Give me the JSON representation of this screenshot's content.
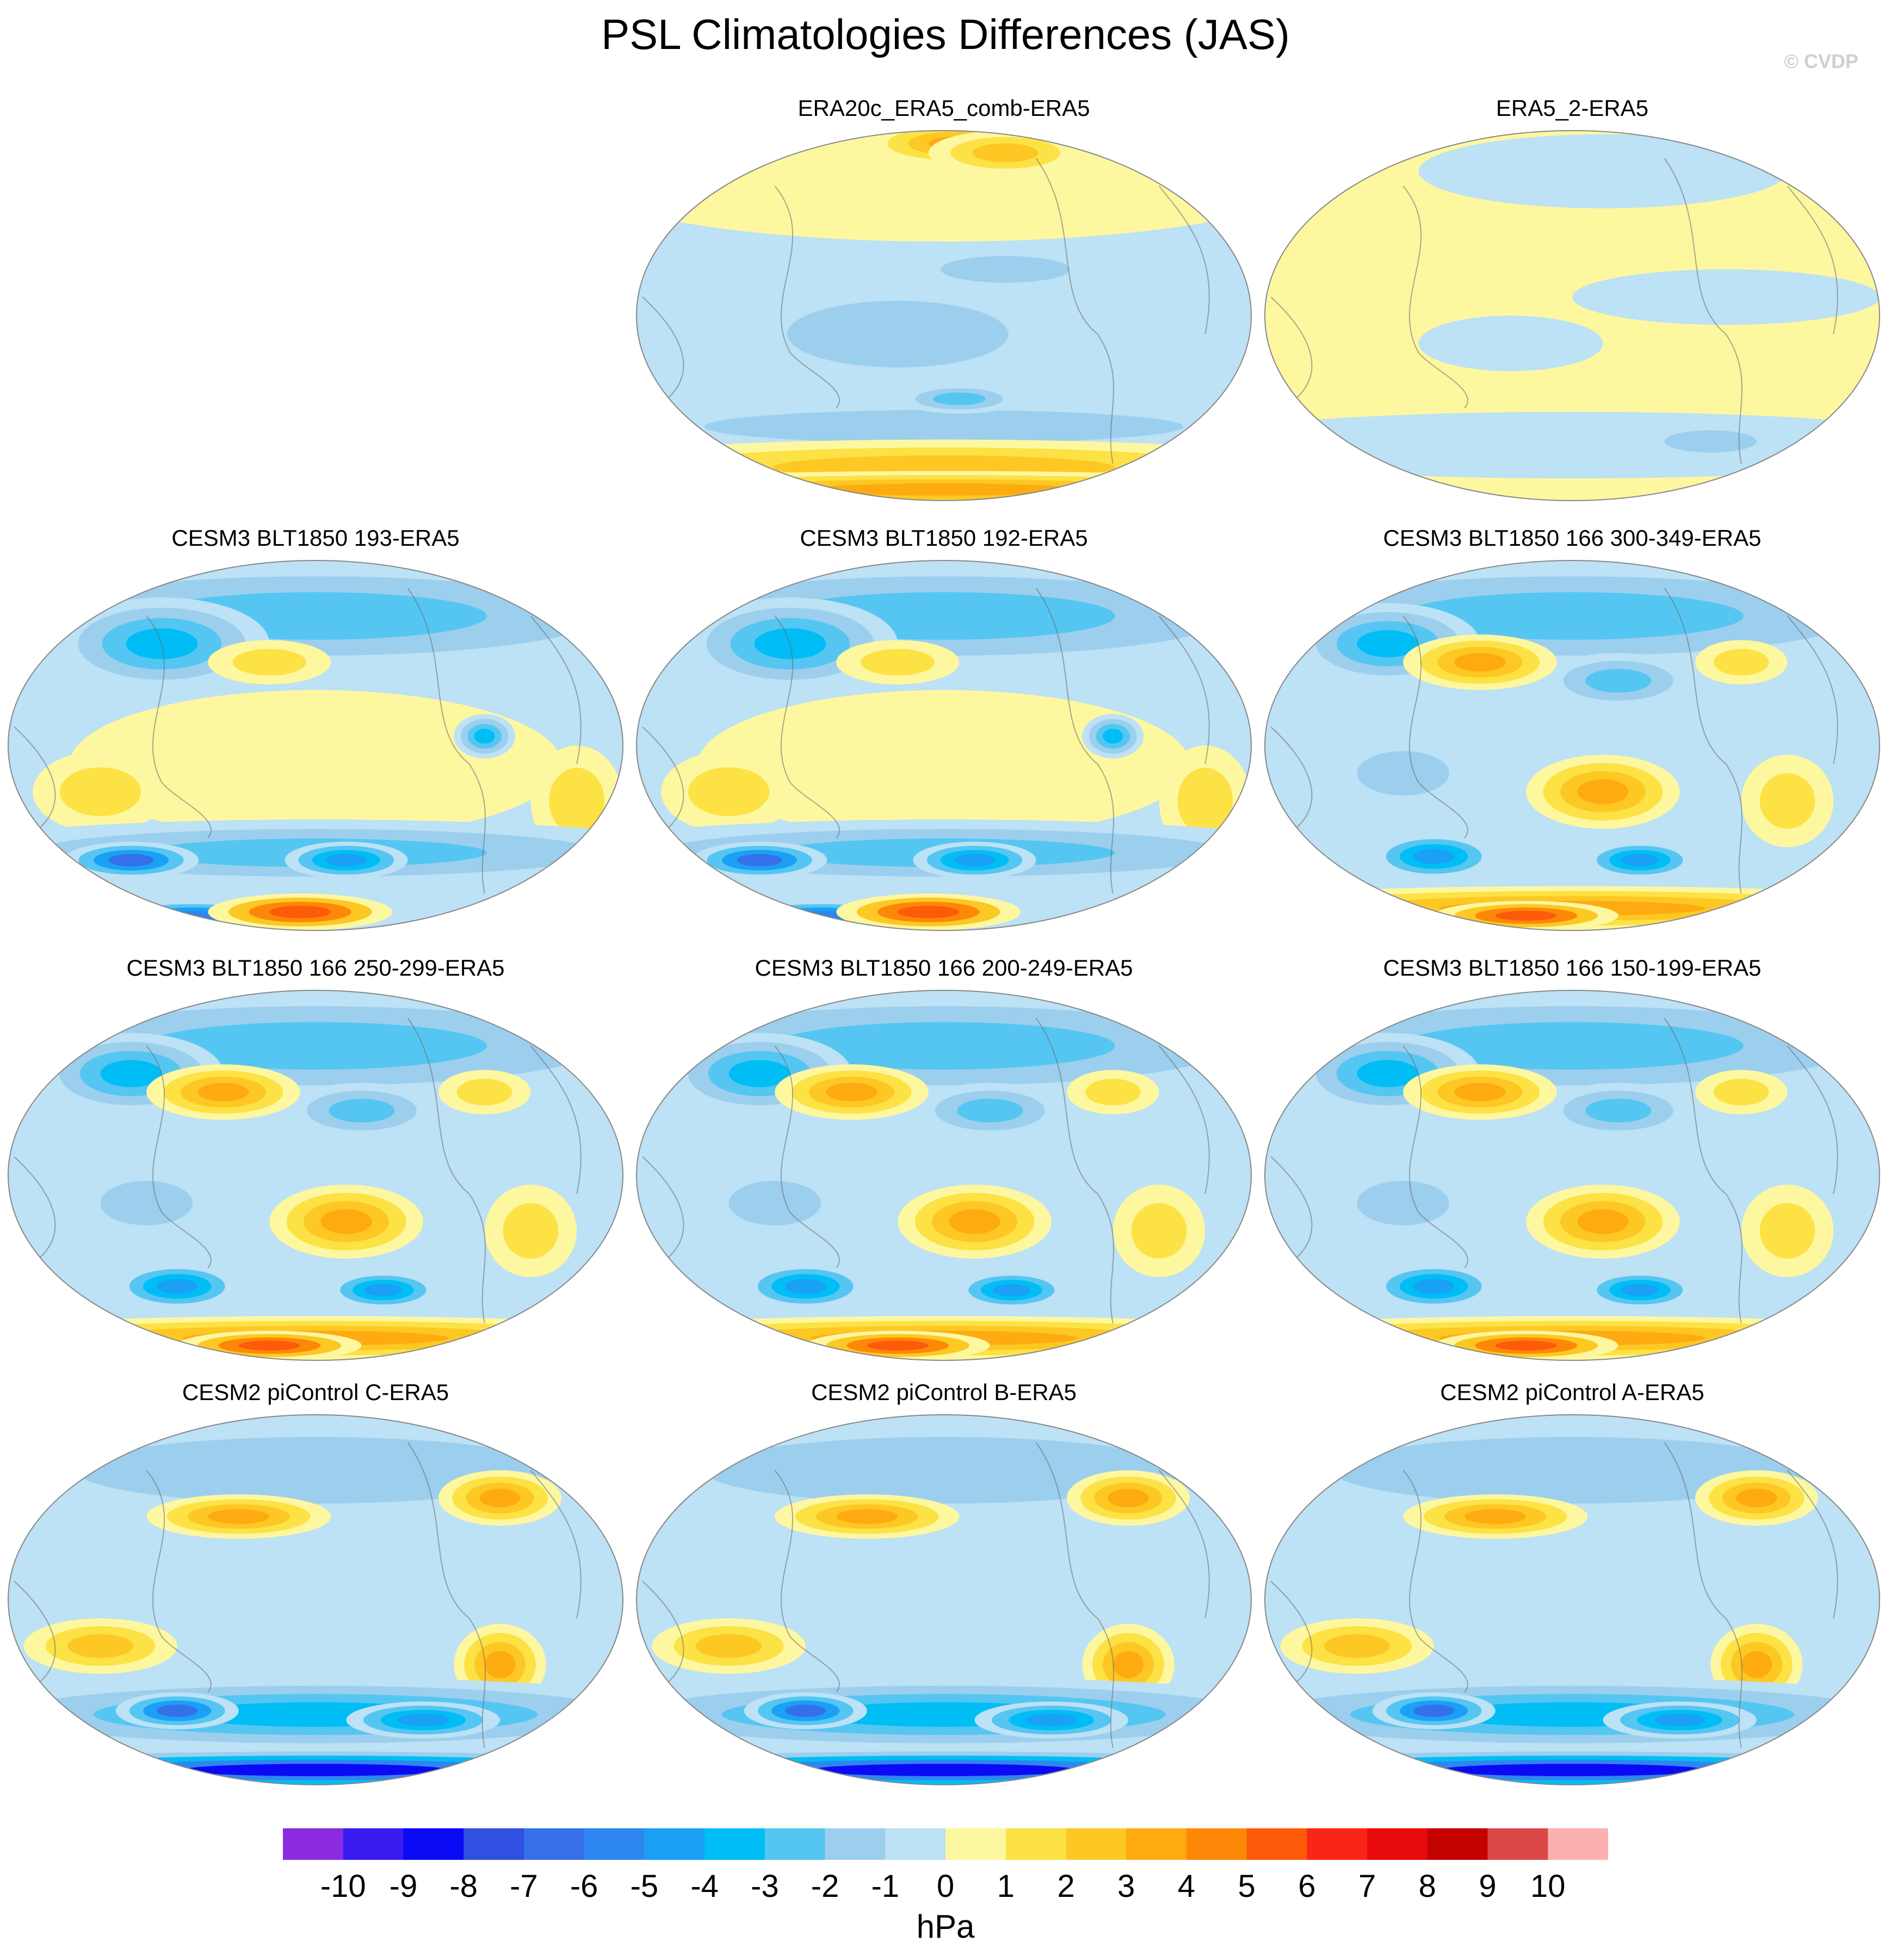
{
  "figure": {
    "title": "PSL Climatologies Differences (JAS)",
    "credit": "© CVDP",
    "units": "hPa"
  },
  "chart_data": {
    "type": "heatmap",
    "projection": "Robinson (global, 180° centered)",
    "panels": [
      {
        "id": "p1",
        "title": "ERA20c_ERA5_comb-ERA5",
        "pattern": "era20c"
      },
      {
        "id": "p2",
        "title": "ERA5_2-ERA5",
        "pattern": "era5_2"
      },
      {
        "id": "p3",
        "title": "CESM3 BLT1850 193-ERA5",
        "pattern": "cesm3a"
      },
      {
        "id": "p4",
        "title": "CESM3 BLT1850 192-ERA5",
        "pattern": "cesm3a"
      },
      {
        "id": "p5",
        "title": "CESM3 BLT1850 166 300-349-ERA5",
        "pattern": "cesm3b"
      },
      {
        "id": "p6",
        "title": "CESM3 BLT1850 166 250-299-ERA5",
        "pattern": "cesm3b"
      },
      {
        "id": "p7",
        "title": "CESM3 BLT1850 166 200-249-ERA5",
        "pattern": "cesm3b"
      },
      {
        "id": "p8",
        "title": "CESM3 BLT1850 166 150-199-ERA5",
        "pattern": "cesm3b"
      },
      {
        "id": "p9",
        "title": "CESM2 piControl C-ERA5",
        "pattern": "cesm2"
      },
      {
        "id": "p10",
        "title": "CESM2 piControl B-ERA5",
        "pattern": "cesm2"
      },
      {
        "id": "p11",
        "title": "CESM2 piControl A-ERA5",
        "pattern": "cesm2"
      }
    ],
    "colorbar": {
      "levels": [
        "-10",
        "-9",
        "-8",
        "-7",
        "-6",
        "-5",
        "-4",
        "-3",
        "-2",
        "-1",
        "0",
        "1",
        "2",
        "3",
        "4",
        "5",
        "6",
        "7",
        "8",
        "9",
        "10"
      ],
      "colors": [
        "#8a2be2",
        "#3a1cf0",
        "#0a0af5",
        "#2f50e0",
        "#3570e8",
        "#2e86f0",
        "#1aa0f5",
        "#00bdf5",
        "#55c6f2",
        "#9ccfed",
        "#bde1f5",
        "#fdf7a0",
        "#fde246",
        "#fdc824",
        "#fdab10",
        "#fd8808",
        "#fd5a0a",
        "#fb2418",
        "#e80a0a",
        "#c40202",
        "#dc4848",
        "#fdb0b0"
      ]
    }
  }
}
